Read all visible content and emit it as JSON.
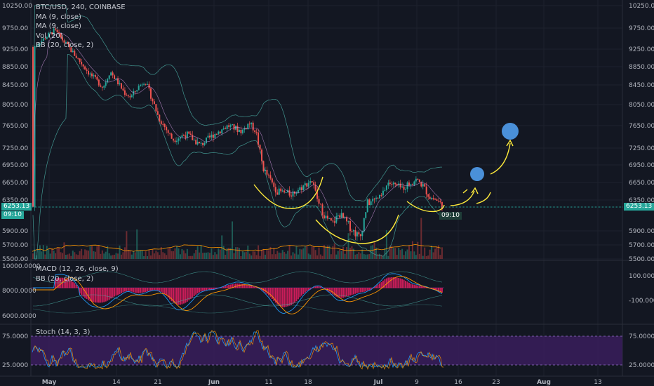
{
  "header": {
    "symbol": "BTC/USD, 240, COINBASE",
    "indicators": [
      "MA (9, close)",
      "MA (9, close)",
      "Vol (20)",
      "BB (20, close, 2)"
    ]
  },
  "macd_legend": [
    "MACD (12, 26, close, 9)",
    "BB (20, close, 2)"
  ],
  "stoch_legend": "Stoch (14, 3, 3)",
  "price_tag": {
    "value": "6253.13",
    "countdown": "09:10"
  },
  "colors": {
    "up": "#26a69a",
    "down": "#ef5350",
    "bb": "#4db6ac",
    "annotation": "#ffeb3b",
    "target": "#4a90d9",
    "stoch_fill": "#3a1d5c"
  },
  "chart_data": [
    {
      "type": "candlestick",
      "title": "BTC/USD, 240, COINBASE",
      "yticks": [
        "10250.00",
        "9750.00",
        "9250.00",
        "8850.00",
        "8450.00",
        "8050.00",
        "7650.00",
        "7250.00",
        "6950.00",
        "6650.00",
        "6350.00",
        "5900.00",
        "5700.00",
        "5500.00"
      ],
      "xticks": [
        "May",
        "14",
        "21",
        "Jun",
        "11",
        "18",
        "Jul",
        "9",
        "16",
        "23",
        "Aug",
        "13"
      ],
      "price_path": [
        {
          "day": 0,
          "price": 9300
        },
        {
          "day": 3,
          "price": 9700
        },
        {
          "day": 5,
          "price": 9300
        },
        {
          "day": 8,
          "price": 8700
        },
        {
          "day": 10,
          "price": 8400
        },
        {
          "day": 11,
          "price": 8750
        },
        {
          "day": 13,
          "price": 8300
        },
        {
          "day": 14,
          "price": 8200
        },
        {
          "day": 15,
          "price": 8400
        },
        {
          "day": 16,
          "price": 8550
        },
        {
          "day": 18,
          "price": 7800
        },
        {
          "day": 20,
          "price": 7400
        },
        {
          "day": 22,
          "price": 7500
        },
        {
          "day": 24,
          "price": 7300
        },
        {
          "day": 26,
          "price": 7500
        },
        {
          "day": 28,
          "price": 7650
        },
        {
          "day": 30,
          "price": 7550
        },
        {
          "day": 31,
          "price": 7700
        },
        {
          "day": 32,
          "price": 7550
        },
        {
          "day": 33,
          "price": 6900
        },
        {
          "day": 35,
          "price": 6500
        },
        {
          "day": 37,
          "price": 6450
        },
        {
          "day": 39,
          "price": 6600
        },
        {
          "day": 40,
          "price": 6700
        },
        {
          "day": 41,
          "price": 6300
        },
        {
          "day": 42,
          "price": 6100
        },
        {
          "day": 43,
          "price": 6000
        },
        {
          "day": 44,
          "price": 6150
        },
        {
          "day": 46,
          "price": 5900
        },
        {
          "day": 47,
          "price": 5800
        },
        {
          "day": 48,
          "price": 6300
        },
        {
          "day": 50,
          "price": 6400
        },
        {
          "day": 51,
          "price": 6650
        },
        {
          "day": 53,
          "price": 6550
        },
        {
          "day": 55,
          "price": 6700
        },
        {
          "day": 56,
          "price": 6600
        },
        {
          "day": 57,
          "price": 6400
        },
        {
          "day": 58,
          "price": 6350
        },
        {
          "day": 59,
          "price": 6253
        }
      ],
      "macd_yticks": [
        "100.0000",
        "-100.0000"
      ],
      "macd_left_ticks": [
        "10000.0000",
        "8000.0000",
        "6000.0000"
      ],
      "stoch_yticks": [
        "75.0000",
        "25.0000"
      ],
      "stoch_left_ticks": [
        "75.0000",
        "25.0000"
      ]
    }
  ]
}
